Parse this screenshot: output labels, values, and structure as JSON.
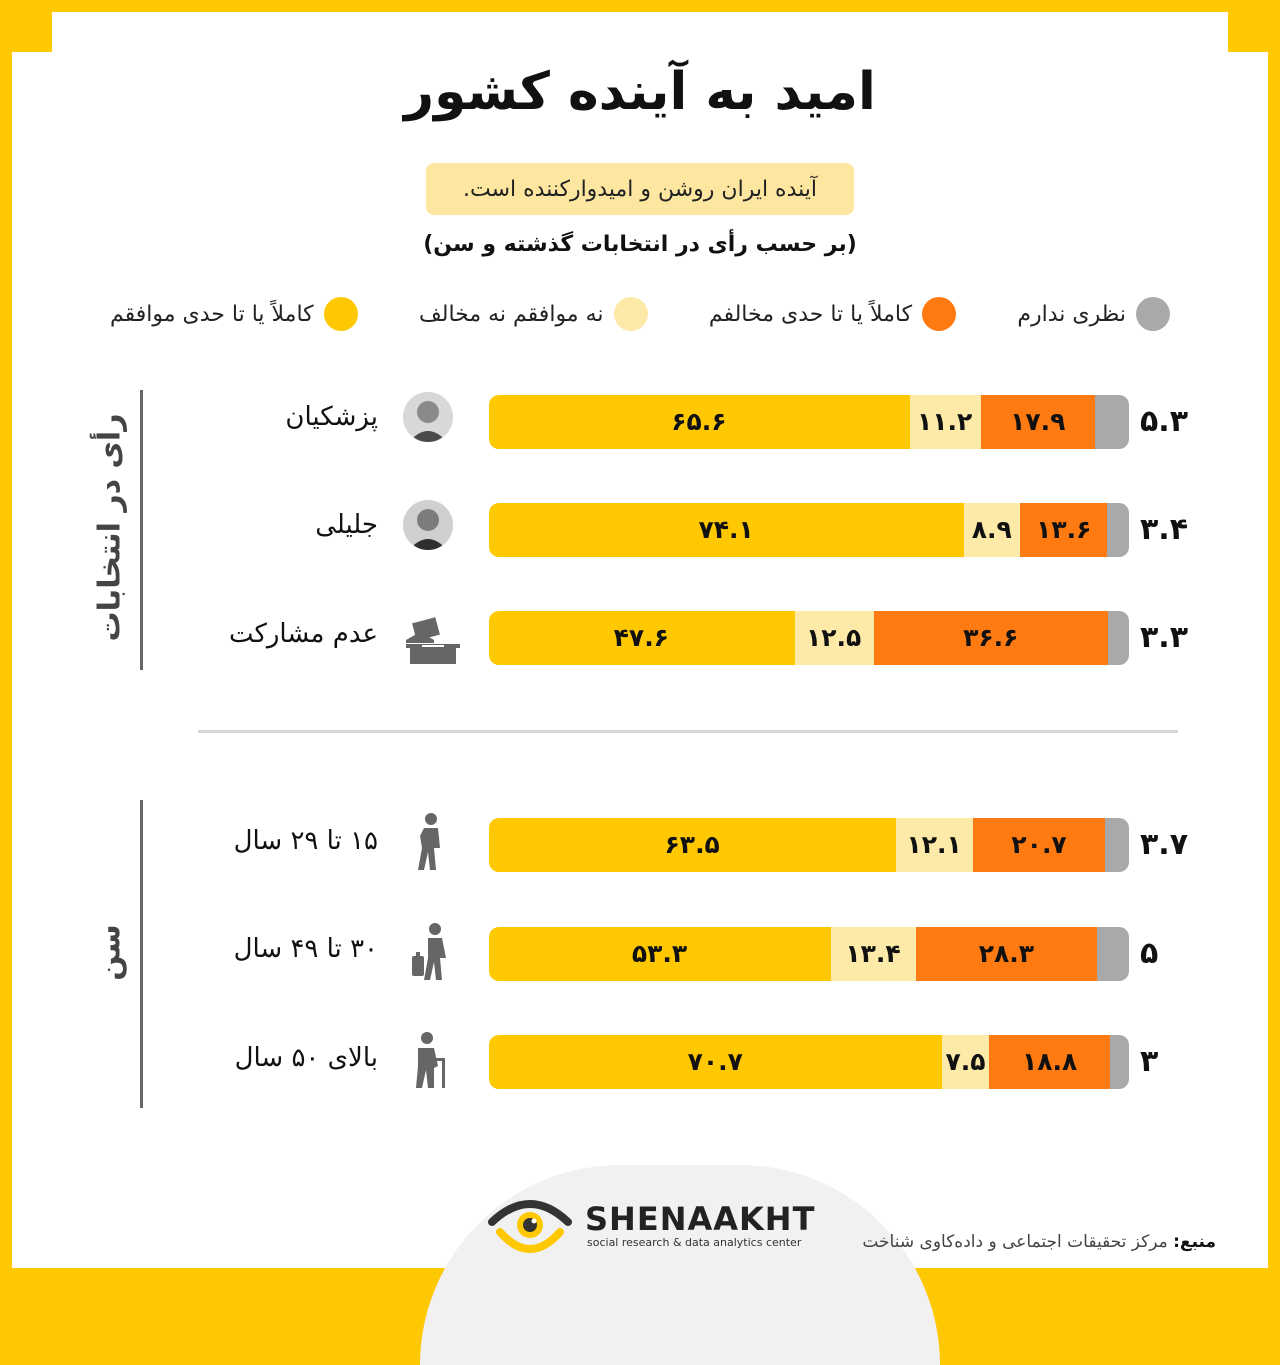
{
  "title": "امید به آینده کشور",
  "subtitle": "آینده ایران روشن و امیدوارکننده است.",
  "by_line": "(بر حسب رأی در انتخابات گذشته و سن)",
  "colors": {
    "agree": "#ffc800",
    "neutral": "#fde9a8",
    "disagree": "#ff7a10",
    "no_opinion": "#a9a9a9",
    "frame": "#ffc800"
  },
  "legend": [
    {
      "label": "نظری ندارم",
      "color": "#a9a9a9"
    },
    {
      "label": "کاملاً یا تا حدی مخالفم",
      "color": "#ff7a10"
    },
    {
      "label": "نه موافقم نه مخالف",
      "color": "#fde9a8"
    },
    {
      "label": "کاملاً یا تا حدی موافقم",
      "color": "#ffc800"
    }
  ],
  "groups": {
    "vote": "رأی در انتخابات",
    "age": "سن"
  },
  "chart_data": {
    "type": "bar",
    "orientation": "horizontal",
    "stacked": true,
    "percent": true,
    "categories": [
      "پزشکیان",
      "جلیلی",
      "عدم مشارکت",
      "۱۵ تا ۲۹ سال",
      "۳۰ تا ۴۹ سال",
      "بالای ۵۰ سال"
    ],
    "series": [
      {
        "name": "کاملاً یا تا حدی موافقم",
        "values": [
          65.6,
          74.1,
          47.6,
          63.5,
          53.3,
          70.7
        ],
        "labels": [
          "۶۵.۶",
          "۷۴.۱",
          "۴۷.۶",
          "۶۳.۵",
          "۵۳.۳",
          "۷۰.۷"
        ]
      },
      {
        "name": "نه موافقم نه مخالف",
        "values": [
          11.2,
          8.9,
          12.5,
          12.1,
          13.4,
          7.5
        ],
        "labels": [
          "۱۱.۲",
          "۸.۹",
          "۱۲.۵",
          "۱۲.۱",
          "۱۳.۴",
          "۷.۵"
        ]
      },
      {
        "name": "کاملاً یا تا حدی مخالفم",
        "values": [
          17.9,
          13.6,
          36.6,
          20.7,
          28.3,
          18.8
        ],
        "labels": [
          "۱۷.۹",
          "۱۳.۶",
          "۳۶.۶",
          "۲۰.۷",
          "۲۸.۳",
          "۱۸.۸"
        ]
      },
      {
        "name": "نظری ندارم",
        "values": [
          5.3,
          3.4,
          3.3,
          3.7,
          5,
          3
        ],
        "labels": [
          "۵.۳",
          "۳.۴",
          "۳.۳",
          "۳.۷",
          "۵",
          "۳"
        ]
      }
    ],
    "xlim": [
      0,
      100
    ]
  },
  "row_icons": [
    "portrait",
    "portrait",
    "ballot-box-icon",
    "walking-person-icon",
    "person-with-luggage-icon",
    "elderly-person-with-cane-icon"
  ],
  "logo": {
    "name": "SHENAAKHT",
    "tagline": "social research & data analytics center"
  },
  "source": {
    "label": "منبع:",
    "text": "مرکز تحقیقات اجتماعی و داده‌کاوی شناخت"
  }
}
